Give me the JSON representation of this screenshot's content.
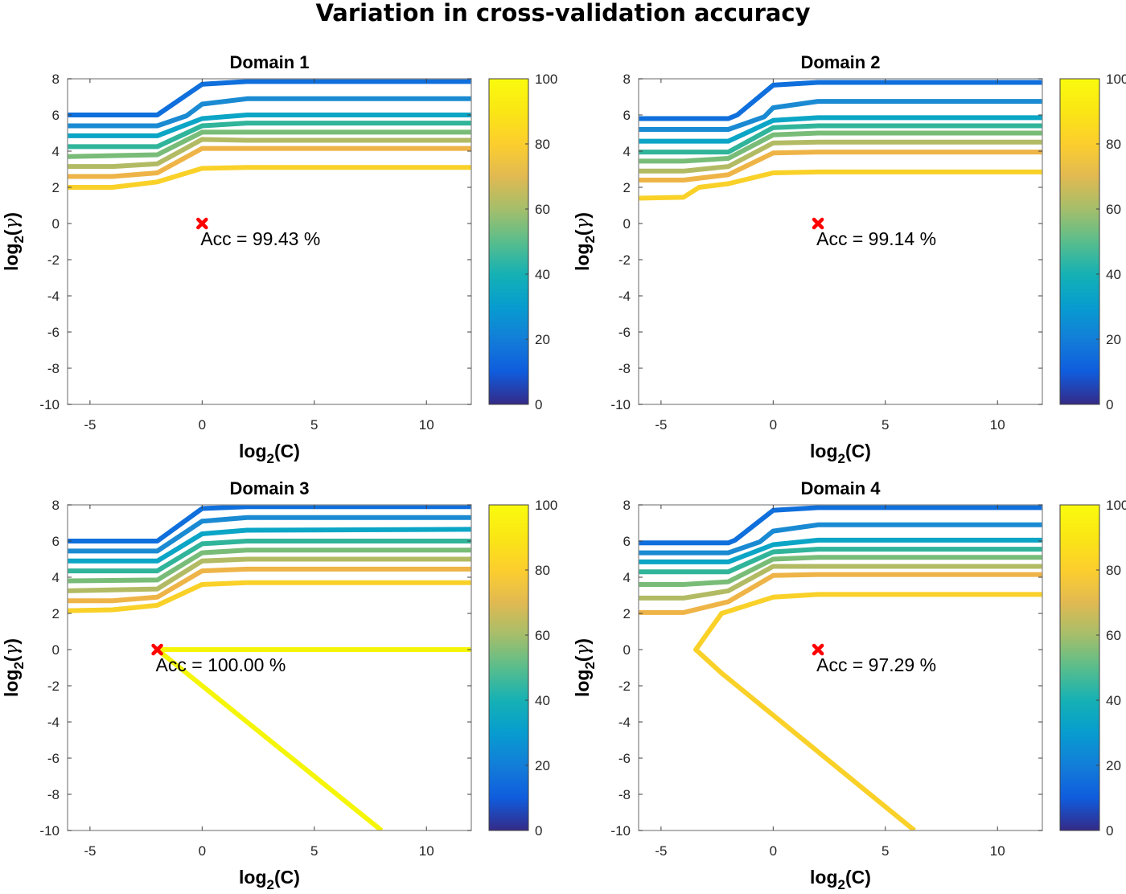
{
  "figure_title": "Variation in cross-validation accuracy",
  "chart_data": [
    {
      "type": "line",
      "subtype": "contour",
      "title": "Domain 1",
      "xlabel": "log2(C)",
      "ylabel": "log2(γ)",
      "xlim": [
        -6,
        12
      ],
      "ylim": [
        -10,
        8
      ],
      "xticks": [
        -5,
        0,
        5,
        10
      ],
      "yticks": [
        8,
        6,
        4,
        2,
        0,
        -2,
        -4,
        -6,
        -8,
        -10
      ],
      "colorbar": {
        "colormap": "parula",
        "range": [
          0,
          100
        ],
        "ticks": [
          100,
          80,
          60,
          40,
          20,
          0
        ]
      },
      "best_point": {
        "x": 0,
        "y": 0,
        "label": "Acc = 99.43 %"
      },
      "series": [
        {
          "level": 10,
          "points": [
            [
              -6,
              6.0
            ],
            [
              -2,
              6.0
            ],
            [
              0,
              7.7
            ],
            [
              2,
              7.85
            ],
            [
              12,
              7.85
            ]
          ]
        },
        {
          "level": 20,
          "points": [
            [
              -6,
              5.4
            ],
            [
              -2,
              5.4
            ],
            [
              -0.7,
              5.95
            ],
            [
              0,
              6.6
            ],
            [
              2,
              6.9
            ],
            [
              12,
              6.9
            ]
          ]
        },
        {
          "level": 30,
          "points": [
            [
              -6,
              4.85
            ],
            [
              -2,
              4.85
            ],
            [
              0,
              5.8
            ],
            [
              2,
              6.0
            ],
            [
              12,
              6.0
            ]
          ]
        },
        {
          "level": 40,
          "points": [
            [
              -6,
              4.25
            ],
            [
              -2,
              4.25
            ],
            [
              0,
              5.4
            ],
            [
              2,
              5.55
            ],
            [
              12,
              5.55
            ]
          ]
        },
        {
          "level": 50,
          "points": [
            [
              -6,
              3.7
            ],
            [
              -2,
              3.8
            ],
            [
              0,
              5.05
            ],
            [
              2,
              5.05
            ],
            [
              12,
              5.05
            ]
          ]
        },
        {
          "level": 60,
          "points": [
            [
              -6,
              3.15
            ],
            [
              -4,
              3.15
            ],
            [
              -2,
              3.3
            ],
            [
              0,
              4.65
            ],
            [
              2,
              4.6
            ],
            [
              12,
              4.6
            ]
          ]
        },
        {
          "level": 70,
          "points": [
            [
              -6,
              2.6
            ],
            [
              -4,
              2.6
            ],
            [
              -2,
              2.8
            ],
            [
              0,
              4.15
            ],
            [
              2,
              4.15
            ],
            [
              12,
              4.15
            ]
          ]
        },
        {
          "level": 80,
          "points": [
            [
              -6,
              2.0
            ],
            [
              -4,
              2.0
            ],
            [
              -2,
              2.3
            ],
            [
              0,
              3.05
            ],
            [
              2,
              3.1
            ],
            [
              12,
              3.1
            ]
          ]
        }
      ]
    },
    {
      "type": "line",
      "subtype": "contour",
      "title": "Domain 2",
      "xlabel": "log2(C)",
      "ylabel": "log2(γ)",
      "xlim": [
        -6,
        12
      ],
      "ylim": [
        -10,
        8
      ],
      "xticks": [
        -5,
        0,
        5,
        10
      ],
      "yticks": [
        8,
        6,
        4,
        2,
        0,
        -2,
        -4,
        -6,
        -8,
        -10
      ],
      "colorbar": {
        "colormap": "parula",
        "range": [
          0,
          100
        ],
        "ticks": [
          100,
          80,
          60,
          40,
          20,
          0
        ]
      },
      "best_point": {
        "x": 2,
        "y": 0,
        "label": "Acc = 99.14 %"
      },
      "series": [
        {
          "level": 10,
          "points": [
            [
              -6,
              5.8
            ],
            [
              -2,
              5.8
            ],
            [
              -1.6,
              6.0
            ],
            [
              0,
              7.65
            ],
            [
              2,
              7.8
            ],
            [
              12,
              7.8
            ]
          ]
        },
        {
          "level": 20,
          "points": [
            [
              -6,
              5.2
            ],
            [
              -2,
              5.2
            ],
            [
              -0.4,
              5.9
            ],
            [
              0,
              6.4
            ],
            [
              2,
              6.75
            ],
            [
              12,
              6.75
            ]
          ]
        },
        {
          "level": 30,
          "points": [
            [
              -6,
              4.55
            ],
            [
              -2,
              4.55
            ],
            [
              0,
              5.7
            ],
            [
              2,
              5.85
            ],
            [
              12,
              5.85
            ]
          ]
        },
        {
          "level": 40,
          "points": [
            [
              -6,
              3.95
            ],
            [
              -2,
              3.95
            ],
            [
              0,
              5.3
            ],
            [
              2,
              5.4
            ],
            [
              12,
              5.4
            ]
          ]
        },
        {
          "level": 50,
          "points": [
            [
              -6,
              3.45
            ],
            [
              -4,
              3.45
            ],
            [
              -2,
              3.6
            ],
            [
              0,
              4.9
            ],
            [
              2,
              5.0
            ],
            [
              12,
              5.0
            ]
          ]
        },
        {
          "level": 60,
          "points": [
            [
              -6,
              2.9
            ],
            [
              -4,
              2.9
            ],
            [
              -2,
              3.15
            ],
            [
              0,
              4.45
            ],
            [
              2,
              4.5
            ],
            [
              12,
              4.5
            ]
          ]
        },
        {
          "level": 70,
          "points": [
            [
              -6,
              2.4
            ],
            [
              -4,
              2.4
            ],
            [
              -2,
              2.7
            ],
            [
              0,
              3.9
            ],
            [
              2,
              3.95
            ],
            [
              12,
              3.95
            ]
          ]
        },
        {
          "level": 80,
          "points": [
            [
              -6,
              1.4
            ],
            [
              -4,
              1.45
            ],
            [
              -3.3,
              2.0
            ],
            [
              -2,
              2.2
            ],
            [
              0,
              2.8
            ],
            [
              2,
              2.85
            ],
            [
              12,
              2.85
            ]
          ]
        }
      ]
    },
    {
      "type": "line",
      "subtype": "contour",
      "title": "Domain 3",
      "xlabel": "log2(C)",
      "ylabel": "log2(γ)",
      "xlim": [
        -6,
        12
      ],
      "ylim": [
        -10,
        8
      ],
      "xticks": [
        -5,
        0,
        5,
        10
      ],
      "yticks": [
        8,
        6,
        4,
        2,
        0,
        -2,
        -4,
        -6,
        -8,
        -10
      ],
      "colorbar": {
        "colormap": "parula",
        "range": [
          0,
          100
        ],
        "ticks": [
          100,
          80,
          60,
          40,
          20,
          0
        ]
      },
      "best_point": {
        "x": -2,
        "y": 0,
        "label": "Acc = 100.00 %"
      },
      "series": [
        {
          "level": 10,
          "points": [
            [
              -6,
              6.0
            ],
            [
              -2,
              6.0
            ],
            [
              0,
              7.8
            ],
            [
              2,
              7.9
            ],
            [
              12,
              7.9
            ]
          ]
        },
        {
          "level": 20,
          "points": [
            [
              -6,
              5.45
            ],
            [
              -2,
              5.45
            ],
            [
              0,
              7.1
            ],
            [
              2,
              7.3
            ],
            [
              12,
              7.3
            ]
          ]
        },
        {
          "level": 30,
          "points": [
            [
              -6,
              4.9
            ],
            [
              -2,
              4.9
            ],
            [
              0,
              6.4
            ],
            [
              2,
              6.6
            ],
            [
              12,
              6.65
            ]
          ]
        },
        {
          "level": 40,
          "points": [
            [
              -6,
              4.35
            ],
            [
              -2,
              4.35
            ],
            [
              0,
              5.85
            ],
            [
              2,
              6.0
            ],
            [
              12,
              6.0
            ]
          ]
        },
        {
          "level": 50,
          "points": [
            [
              -6,
              3.8
            ],
            [
              -2,
              3.85
            ],
            [
              0,
              5.35
            ],
            [
              2,
              5.5
            ],
            [
              12,
              5.5
            ]
          ]
        },
        {
          "level": 60,
          "points": [
            [
              -6,
              3.25
            ],
            [
              -2,
              3.35
            ],
            [
              0,
              4.9
            ],
            [
              2,
              5.0
            ],
            [
              12,
              5.0
            ]
          ]
        },
        {
          "level": 70,
          "points": [
            [
              -6,
              2.7
            ],
            [
              -4,
              2.7
            ],
            [
              -2,
              2.9
            ],
            [
              0,
              4.35
            ],
            [
              2,
              4.45
            ],
            [
              12,
              4.45
            ]
          ]
        },
        {
          "level": 80,
          "points": [
            [
              -6,
              2.15
            ],
            [
              -4,
              2.2
            ],
            [
              -2,
              2.45
            ],
            [
              0,
              3.6
            ],
            [
              2,
              3.7
            ],
            [
              12,
              3.7
            ]
          ]
        },
        {
          "level": 100,
          "points": [
            [
              12,
              0
            ],
            [
              -2,
              0
            ],
            [
              8,
              -10
            ]
          ]
        }
      ]
    },
    {
      "type": "line",
      "subtype": "contour",
      "title": "Domain 4",
      "xlabel": "log2(C)",
      "ylabel": "log2(γ)",
      "xlim": [
        -6,
        12
      ],
      "ylim": [
        -10,
        8
      ],
      "xticks": [
        -5,
        0,
        5,
        10
      ],
      "yticks": [
        8,
        6,
        4,
        2,
        0,
        -2,
        -4,
        -6,
        -8,
        -10
      ],
      "colorbar": {
        "colormap": "parula",
        "range": [
          0,
          100
        ],
        "ticks": [
          100,
          80,
          60,
          40,
          20,
          0
        ]
      },
      "best_point": {
        "x": 2,
        "y": 0,
        "label": "Acc = 97.29 %"
      },
      "series": [
        {
          "level": 10,
          "points": [
            [
              -6,
              5.9
            ],
            [
              -2,
              5.9
            ],
            [
              -1.7,
              6.05
            ],
            [
              0,
              7.7
            ],
            [
              2,
              7.85
            ],
            [
              12,
              7.85
            ]
          ]
        },
        {
          "level": 20,
          "points": [
            [
              -6,
              5.35
            ],
            [
              -2,
              5.35
            ],
            [
              -0.6,
              5.95
            ],
            [
              0,
              6.55
            ],
            [
              2,
              6.9
            ],
            [
              12,
              6.9
            ]
          ]
        },
        {
          "level": 30,
          "points": [
            [
              -6,
              4.85
            ],
            [
              -2,
              4.85
            ],
            [
              0,
              5.8
            ],
            [
              2,
              6.05
            ],
            [
              12,
              6.05
            ]
          ]
        },
        {
          "level": 40,
          "points": [
            [
              -6,
              4.3
            ],
            [
              -2,
              4.3
            ],
            [
              0,
              5.4
            ],
            [
              2,
              5.55
            ],
            [
              12,
              5.55
            ]
          ]
        },
        {
          "level": 50,
          "points": [
            [
              -6,
              3.6
            ],
            [
              -4,
              3.6
            ],
            [
              -2,
              3.75
            ],
            [
              0,
              5.0
            ],
            [
              2,
              5.1
            ],
            [
              12,
              5.1
            ]
          ]
        },
        {
          "level": 60,
          "points": [
            [
              -6,
              2.85
            ],
            [
              -4,
              2.85
            ],
            [
              -2,
              3.25
            ],
            [
              0,
              4.6
            ],
            [
              2,
              4.6
            ],
            [
              12,
              4.6
            ]
          ]
        },
        {
          "level": 70,
          "points": [
            [
              -6,
              2.05
            ],
            [
              -4,
              2.05
            ],
            [
              -2,
              2.65
            ],
            [
              0,
              4.1
            ],
            [
              2,
              4.15
            ],
            [
              12,
              4.15
            ]
          ]
        },
        {
          "level": 80,
          "points": [
            [
              12,
              3.05
            ],
            [
              2,
              3.05
            ],
            [
              0,
              2.9
            ],
            [
              -2.3,
              2.0
            ],
            [
              -3.45,
              0
            ],
            [
              -2.3,
              -1.3
            ],
            [
              -1.9,
              -1.7
            ],
            [
              6.3,
              -10
            ]
          ]
        }
      ]
    }
  ]
}
